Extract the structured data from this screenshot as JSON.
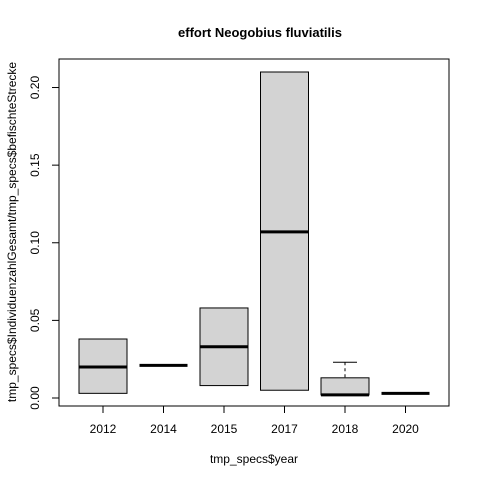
{
  "chart_data": {
    "type": "boxplot",
    "title": "effort Neogobius fluviatilis",
    "xlabel": "tmp_specs$year",
    "ylabel": "tmp_specs$IndividuenzahlGesamt/tmp_specs$befischteStrecke",
    "categories": [
      "2012",
      "2014",
      "2015",
      "2017",
      "2018",
      "2020"
    ],
    "y_ticks": [
      "0.00",
      "0.05",
      "0.10",
      "0.15",
      "0.20"
    ],
    "ylim": [
      0,
      0.21
    ],
    "grid": false,
    "box_fill": "#d3d3d3",
    "stats": [
      {
        "year": "2012",
        "min": 0.003,
        "q1": 0.003,
        "median": 0.02,
        "q3": 0.038,
        "max": 0.038
      },
      {
        "year": "2014",
        "min": 0.021,
        "q1": 0.021,
        "median": 0.021,
        "q3": 0.021,
        "max": 0.021
      },
      {
        "year": "2015",
        "min": 0.008,
        "q1": 0.008,
        "median": 0.033,
        "q3": 0.058,
        "max": 0.058
      },
      {
        "year": "2017",
        "min": 0.005,
        "q1": 0.005,
        "median": 0.107,
        "q3": 0.21,
        "max": 0.21
      },
      {
        "year": "2018",
        "min": 0.002,
        "q1": 0.002,
        "median": 0.002,
        "q3": 0.013,
        "max": 0.023
      },
      {
        "year": "2020",
        "min": 0.003,
        "q1": 0.003,
        "median": 0.003,
        "q3": 0.003,
        "max": 0.003
      }
    ]
  }
}
